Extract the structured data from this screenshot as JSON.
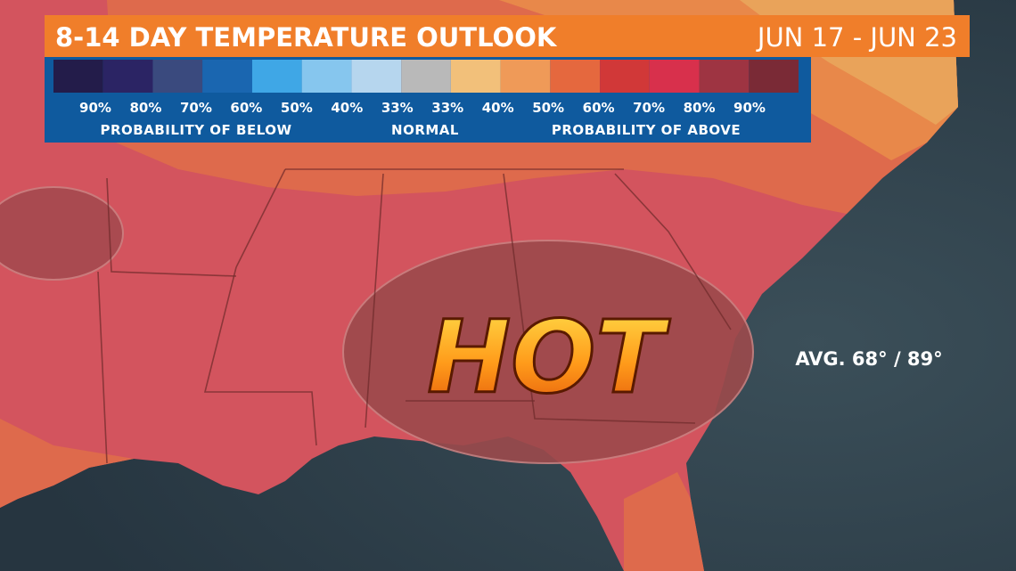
{
  "header": {
    "title": "8-14 DAY TEMPERATURE OUTLOOK",
    "dates": "JUN 17 - JUN 23"
  },
  "legend": {
    "colors": [
      "#231c4a",
      "#2b2464",
      "#3a4a7e",
      "#1a66b0",
      "#3fa7e6",
      "#86c6ee",
      "#b6d6ee",
      "#b9b9b9",
      "#f2c07a",
      "#ef9a58",
      "#e5683e",
      "#d13838",
      "#d8304c",
      "#9e3442",
      "#7a2a36"
    ],
    "labels": [
      "90%",
      "80%",
      "70%",
      "60%",
      "50%",
      "40%",
      "33%",
      "33%",
      "40%",
      "50%",
      "60%",
      "70%",
      "80%",
      "90%"
    ],
    "groups": [
      "PROBABILITY OF BELOW",
      "NORMAL",
      "PROBABILITY OF ABOVE"
    ]
  },
  "map": {
    "headline": "HOT",
    "average": "AVG. 68° / 89°"
  }
}
